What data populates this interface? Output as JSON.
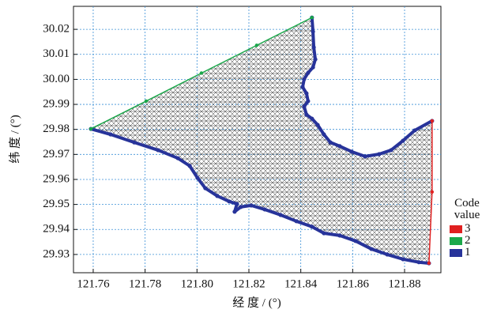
{
  "chart_data": {
    "type": "line",
    "xlabel": "经 度 / (°)",
    "ylabel": "纬 度 / (°)",
    "legend_title": "Code value",
    "legend": "right",
    "grid": true,
    "xlim": [
      121.7524,
      121.894
    ],
    "ylim": [
      29.9227,
      30.0292
    ],
    "xticks": [
      121.76,
      121.78,
      {
        "value": 121.8,
        "label": "121.80"
      },
      121.82,
      121.84,
      121.86,
      121.88
    ],
    "yticks": [
      29.93,
      29.94,
      29.95,
      29.96,
      29.97,
      29.98,
      29.99,
      {
        "value": 30,
        "label": "30.00"
      },
      30.01,
      30.02
    ],
    "series": [
      {
        "name": "1",
        "color": "#27339a",
        "x": [
          121.8443,
          121.8447,
          121.845,
          121.8456,
          121.8447,
          121.8428,
          121.8413,
          121.8407,
          121.8422,
          121.8428,
          121.8413,
          121.8422,
          121.8443,
          121.8465,
          121.8489,
          121.8514,
          121.855,
          121.8596,
          121.8648,
          121.8702,
          121.8748,
          121.8794,
          121.8839,
          121.8906,
          null,
          121.8894,
          121.8855,
          121.8794,
          121.8733,
          121.8672,
          121.8611,
          121.855,
          121.8489,
          121.8443,
          121.8383,
          121.8322,
          121.8261,
          121.8209,
          121.8169,
          121.8145,
          121.8154,
          121.8124,
          121.8078,
          121.8032,
          121.8002,
          121.7972,
          121.7926,
          121.785,
          121.7758,
          121.7667,
          121.7591
        ],
        "values": [
          30.0247,
          30.0191,
          30.0128,
          30.008,
          30.0048,
          30.0026,
          30.0001,
          29.9969,
          29.9944,
          29.9913,
          29.9891,
          29.9859,
          29.9843,
          29.9818,
          29.978,
          29.9748,
          29.9733,
          29.9711,
          29.9692,
          29.9701,
          29.9717,
          29.9755,
          29.9796,
          29.9834,
          null,
          29.9265,
          29.9269,
          29.9281,
          29.93,
          29.9322,
          29.9354,
          29.9376,
          29.9385,
          29.9411,
          29.9433,
          29.9458,
          29.948,
          29.9496,
          29.949,
          29.9471,
          29.9502,
          29.9512,
          29.9534,
          29.9565,
          29.9606,
          29.9654,
          29.9685,
          29.9717,
          29.9748,
          29.978,
          29.9802
        ]
      },
      {
        "name": "2",
        "color": "#1aa84a",
        "x": [
          121.7591,
          121.7804,
          121.8017,
          121.823,
          121.8443
        ],
        "values": [
          29.9802,
          29.9913,
          30.0025,
          30.0136,
          30.0247
        ]
      },
      {
        "name": "3",
        "color": "#e02020",
        "x": [
          121.8906,
          121.8906,
          121.8894
        ],
        "values": [
          29.9834,
          29.955,
          29.9265
        ]
      }
    ]
  }
}
